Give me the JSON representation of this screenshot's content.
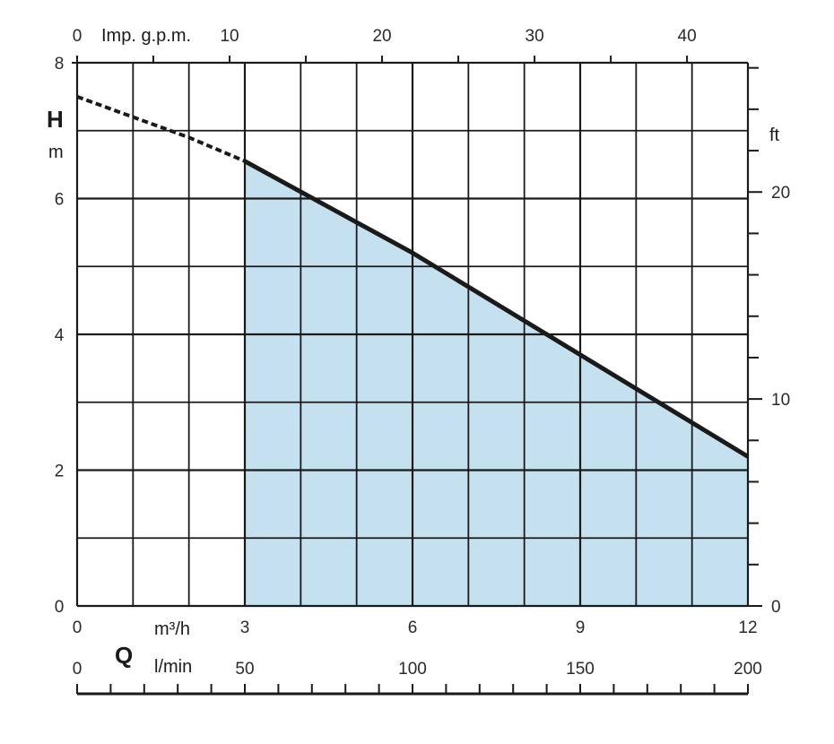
{
  "chart_data": {
    "type": "line",
    "title": "",
    "y_symbol": "H",
    "y_unit": "m",
    "x_symbol": "Q",
    "x_unit_primary": "m³/h",
    "x_unit_lpm": "l/min",
    "x_unit_top": "Imp. g.p.m.",
    "y_unit_right": "ft",
    "xlim": [
      0,
      12
    ],
    "ylim": [
      0,
      8
    ],
    "x_ticks": [
      0,
      3,
      6,
      9,
      12
    ],
    "y_ticks": [
      0,
      2,
      4,
      6,
      8
    ],
    "top_ticks": [
      0,
      10,
      20,
      30,
      40
    ],
    "right_ticks": [
      0,
      10,
      20
    ],
    "lpm_ticks": [
      0,
      50,
      100,
      150,
      200
    ],
    "curve_x": [
      0,
      1,
      2,
      3,
      4,
      5,
      6,
      7,
      8,
      9,
      10,
      11,
      12
    ],
    "curve_y": [
      7.5,
      7.2,
      6.9,
      6.55,
      6.1,
      5.65,
      5.2,
      4.7,
      4.2,
      3.7,
      3.2,
      2.7,
      2.2
    ],
    "dashed_until_x": 3,
    "shaded_range": [
      3,
      12
    ],
    "colors": {
      "fill": "#c5e1ef",
      "curve": "#1a1a1a",
      "grid": "#1a1a1a"
    },
    "grid": true
  }
}
